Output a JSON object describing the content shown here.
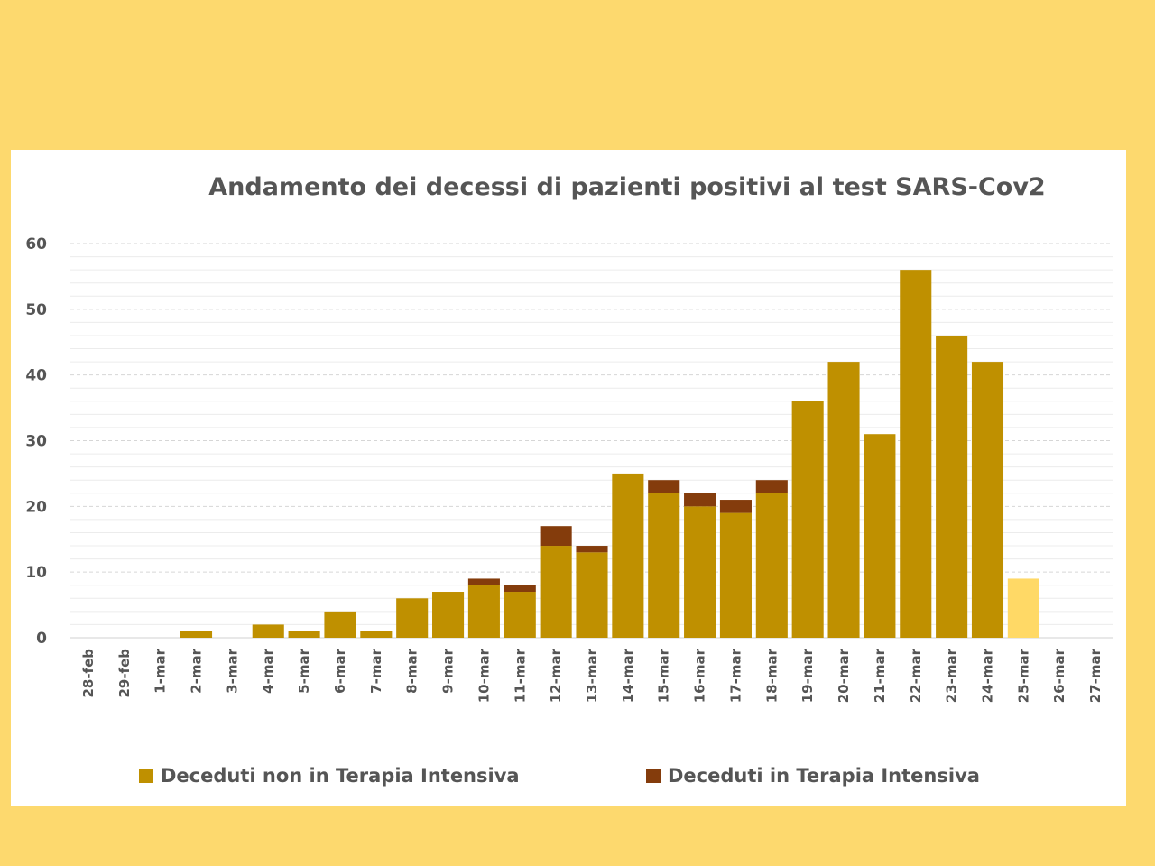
{
  "chart_data": {
    "type": "bar",
    "stacked": true,
    "title": "Andamento dei decessi di pazienti positivi al test SARS-Cov2",
    "categories": [
      "28-feb",
      "29-feb",
      "1-mar",
      "2-mar",
      "3-mar",
      "4-mar",
      "5-mar",
      "6-mar",
      "7-mar",
      "8-mar",
      "9-mar",
      "10-mar",
      "11-mar",
      "12-mar",
      "13-mar",
      "14-mar",
      "15-mar",
      "16-mar",
      "17-mar",
      "18-mar",
      "19-mar",
      "20-mar",
      "21-mar",
      "22-mar",
      "23-mar",
      "24-mar",
      "25-mar",
      "26-mar",
      "27-mar"
    ],
    "series": [
      {
        "name": "Deceduti non in Terapia Intensiva",
        "color": "#bf9000",
        "values": [
          0,
          0,
          0,
          1,
          0,
          2,
          1,
          4,
          1,
          6,
          7,
          8,
          7,
          14,
          13,
          25,
          22,
          20,
          19,
          22,
          36,
          42,
          31,
          56,
          46,
          42,
          9,
          0,
          0
        ]
      },
      {
        "name": "Deceduti in Terapia Intensiva",
        "color": "#843c0c",
        "values": [
          0,
          0,
          0,
          0,
          0,
          0,
          0,
          0,
          0,
          0,
          0,
          1,
          1,
          3,
          1,
          0,
          2,
          2,
          2,
          2,
          0,
          0,
          0,
          0,
          0,
          0,
          0,
          0,
          0
        ]
      }
    ],
    "highlight": {
      "category": "25-mar",
      "color": "#ffd966"
    },
    "yticks": [
      0,
      10,
      20,
      30,
      40,
      50,
      60
    ],
    "ylim": [
      0,
      60
    ],
    "grid": true,
    "legend_position": "bottom"
  }
}
